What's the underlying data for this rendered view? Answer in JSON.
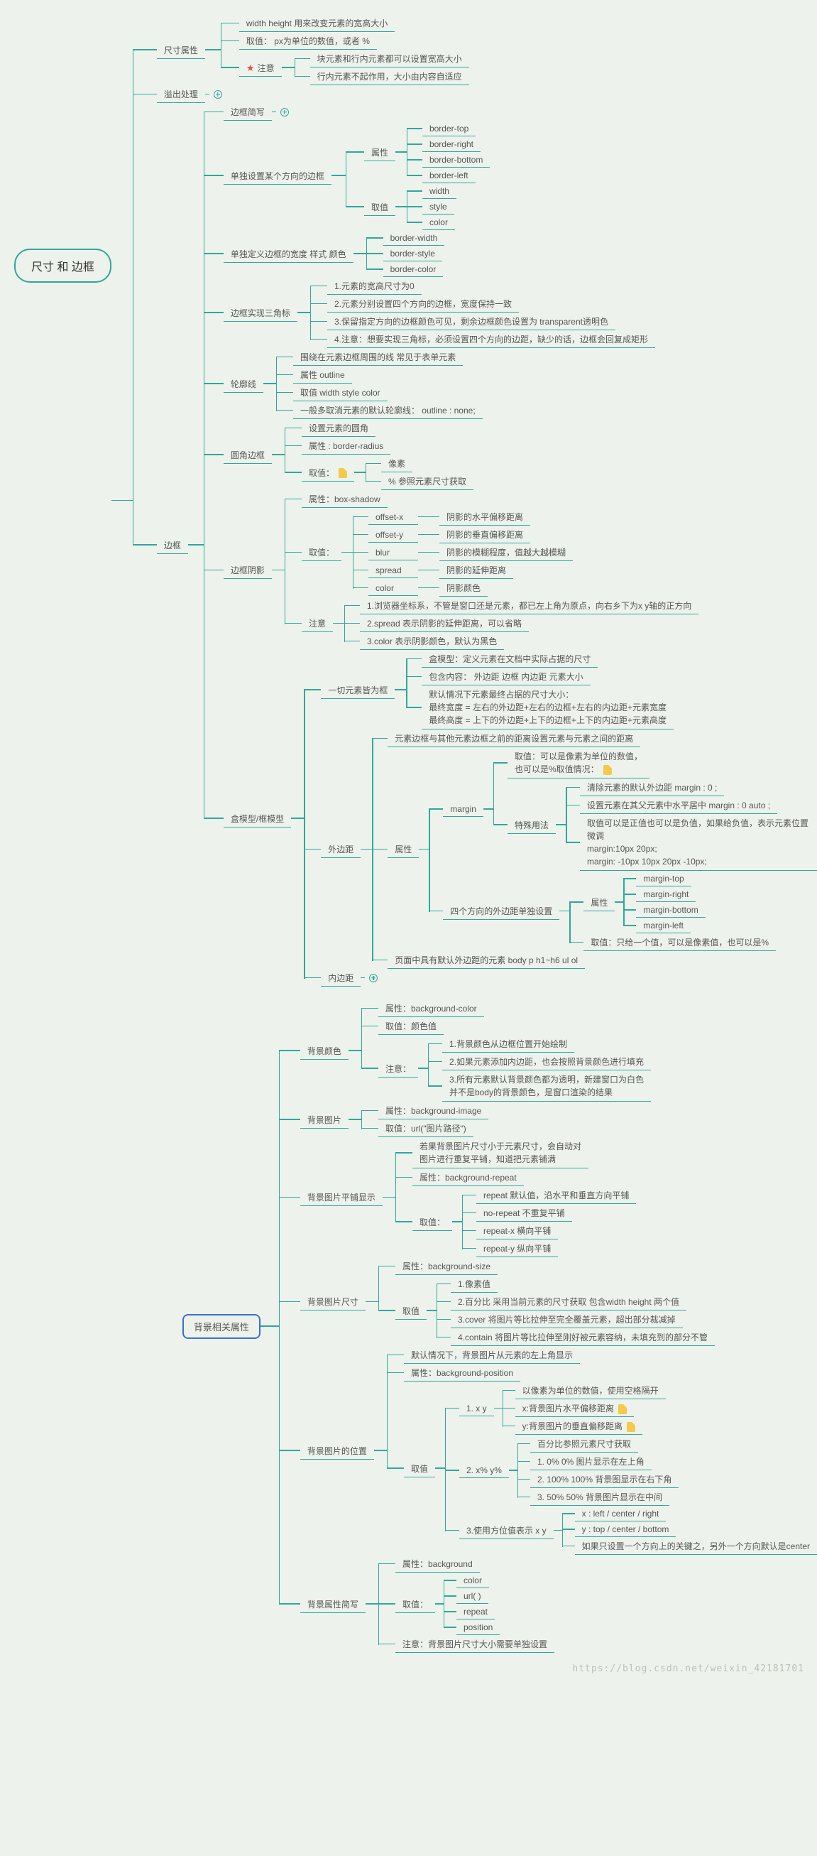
{
  "colors": {
    "c1": "#2fa89b",
    "c2": "#4aa3a3",
    "c_blue": "#3b6fd6",
    "bg": "#eef2ec",
    "text": "#555555",
    "star": "#e74c3c",
    "note": "#f5c94a"
  },
  "root": "尺寸 和 边框",
  "size_attr": {
    "label": "尺寸属性",
    "r1": "width height   用来改变元素的宽高大小",
    "r2": "取值：   px为单位的数值，或者 %",
    "r3_label": "注意",
    "r3a": "块元素和行内元素都可以设置宽高大小",
    "r3b": "行内元素不起作用，大小由内容自适应"
  },
  "overflow": {
    "label": "溢出处理"
  },
  "border": {
    "label": "边框",
    "short": "边框简写",
    "single_dir": {
      "label": "单独设置某个方向的边框",
      "attr": "属性",
      "a1": "border-top",
      "a2": "border-right",
      "a3": "border-bottom",
      "a4": "border-left",
      "val": "取值",
      "v1": "width",
      "v2": "style",
      "v3": "color"
    },
    "define": {
      "label": "单独定义边框的宽度 样式 颜色",
      "b1": "border-width",
      "b2": "border-style",
      "b3": "border-color"
    },
    "triangle": {
      "label": "边框实现三角标",
      "t1": "1.元素的宽高尺寸为0",
      "t2": "2.元素分别设置四个方向的边框，宽度保持一致",
      "t3": "3.保留指定方向的边框颜色可见，剩余边框颜色设置为 transparent透明色",
      "t4": "4.注意：想要实现三角标，必须设置四个方向的边距，缺少的话，边框会回复成矩形"
    },
    "outline": {
      "label": "轮廓线",
      "o1": "围绕在元素边框周围的线          常见于表单元素",
      "o2": "属性   outline",
      "o3": "取值  width style  color",
      "o4": "一般多取消元素的默认轮廓线：  outline : none;"
    },
    "radius": {
      "label": "圆角边框",
      "r1": "设置元素的圆角",
      "r2": "属性 : border-radius",
      "r3": "取值：",
      "r3a": "像素",
      "r3b": "%  参照元素尺寸获取"
    },
    "shadow": {
      "label": "边框阴影",
      "s_attr": "属性：box-shadow",
      "s_val": "取值：",
      "v1k": "offset-x",
      "v1d": "阴影的水平偏移距离",
      "v2k": "offset-y",
      "v2d": "阴影的垂直偏移距离",
      "v3k": "blur",
      "v3d": "阴影的模糊程度，值越大越模糊",
      "v4k": "spread",
      "v4d": "阴影的延伸距离",
      "v5k": "color",
      "v5d": "阴影颜色",
      "note": "注意",
      "n1": "1.浏览器坐标系，不管是窗口还是元素，都已左上角为原点，向右乡下为x y轴的正方向",
      "n2": "2.spread 表示阴影的延伸距离，可以省略",
      "n3": "3.color    表示阴影颜色，默认为黑色"
    },
    "boxmodel": {
      "label": "盒模型/框模型",
      "allbox": "一切元素皆为框",
      "ab1": "盒模型：定义元素在文档中实际占据的尺寸",
      "ab2": "包含内容： 外边距 边框 内边距 元素大小",
      "ab3": "默认情况下元素最终占据的尺寸大小：\n最终宽度 = 左右的外边距+左右的边框+左右的内边距+元素宽度\n最终高度 = 上下的外边距+上下的边框+上下的内边距+元素高度",
      "margin_out": "外边距",
      "mo_desc": "元素边框与其他元素边框之前的距离设置元素与元素之间的距离",
      "mo_attr": "属性",
      "margin": "margin",
      "mg_val": "取值：可以是像素为单位的数值，\n也可以是%取值情况：",
      "mg_sp": "特殊用法",
      "sp1": "清除元素的默认外边距    margin : 0 ;",
      "sp2": "设置元素在其父元素中水平居中    margin : 0 auto ;",
      "sp3": "取值可以是正值也可以是负值，如果给负值，表示元素位置微调\nmargin:10px 20px;\nmargin: -10px 10px 20px -10px;",
      "four": "四个方向的外边距单独设置",
      "four_attr": "属性",
      "fa1": "margin-top",
      "fa2": "margin-right",
      "fa3": "margin-bottom",
      "fa4": "margin-left",
      "four_val": "取值：只给一个值，可以是像素值，也可以是%",
      "defaults": "页面中具有默认外边距的元素          body p h1~h6 ul ol",
      "padding": "内边距"
    }
  },
  "bg": {
    "label": "背景相关属性",
    "color": {
      "label": "背景颜色",
      "a": "属性：background-color",
      "v": "取值：颜色值",
      "note": "注意：",
      "n1": "1.背景颜色从边框位置开始绘制",
      "n2": "2.如果元素添加内边距，也会按照背景颜色进行填充",
      "n3": "3.所有元素默认背景颜色都为透明，新建窗口为白色\n并不是body的背景颜色，是窗口渲染的结果"
    },
    "image": {
      "label": "背景图片",
      "a": "属性：background-image",
      "v": "取值：url(\"图片路径\")"
    },
    "repeat": {
      "label": "背景图片平铺显示",
      "desc": "若果背景图片尺寸小于元素尺寸，会自动对\n图片进行重复平铺，知道把元素铺满",
      "a": "属性：background-repeat",
      "val": "取值：",
      "r1": "repeat  默认值，沿水平和垂直方向平铺",
      "r2": "no-repeat 不重复平铺",
      "r3": "repeat-x         横向平铺",
      "r4": "repeat-y         纵向平铺"
    },
    "size": {
      "label": "背景图片尺寸",
      "a": "属性：background-size",
      "val": "取值",
      "s1": "1.像素值",
      "s2": "2.百分比  采用当前元素的尺寸获取 包含width height 两个值",
      "s3": "3.cover 将图片等比拉伸至完全覆盖元素，超出部分裁减掉",
      "s4": "4.contain 将图片等比拉伸至刚好被元素容纳，未填充到的部分不管"
    },
    "pos": {
      "label": "背景图片的位置",
      "def": "默认情况下，背景图片从元素的左上角显示",
      "a": "属性：background-position",
      "val": "取值",
      "p1": "1. x y",
      "p1_desc": "以像素为单位的数值，使用空格隔开",
      "p1a": "x:背景图片水平偏移距离",
      "p1b": "y:背景图片的垂直偏移距离",
      "p2": "2. x% y%",
      "p2_desc": "百分比参照元素尺寸获取",
      "p2a": "1. 0% 0%  图片显示在左上角",
      "p2b": "2. 100%  100%  背景图显示在右下角",
      "p2c": "3. 50% 50%  背景图片显示在中间",
      "p3": "3.使用方位值表示 x y",
      "p3a": "x : left / center / right",
      "p3b": "y : top / center / bottom",
      "p3c": "如果只设置一个方向上的关键之，另外一个方向默认是center"
    },
    "short": {
      "label": "背景属性简写",
      "a": "属性：background",
      "val": "取值：",
      "v1": "color",
      "v2": "url( )",
      "v3": "repeat",
      "v4": "position",
      "note": "注意：背景图片尺寸大小需要单独设置"
    }
  },
  "watermark": "https://blog.csdn.net/weixin_42181701"
}
